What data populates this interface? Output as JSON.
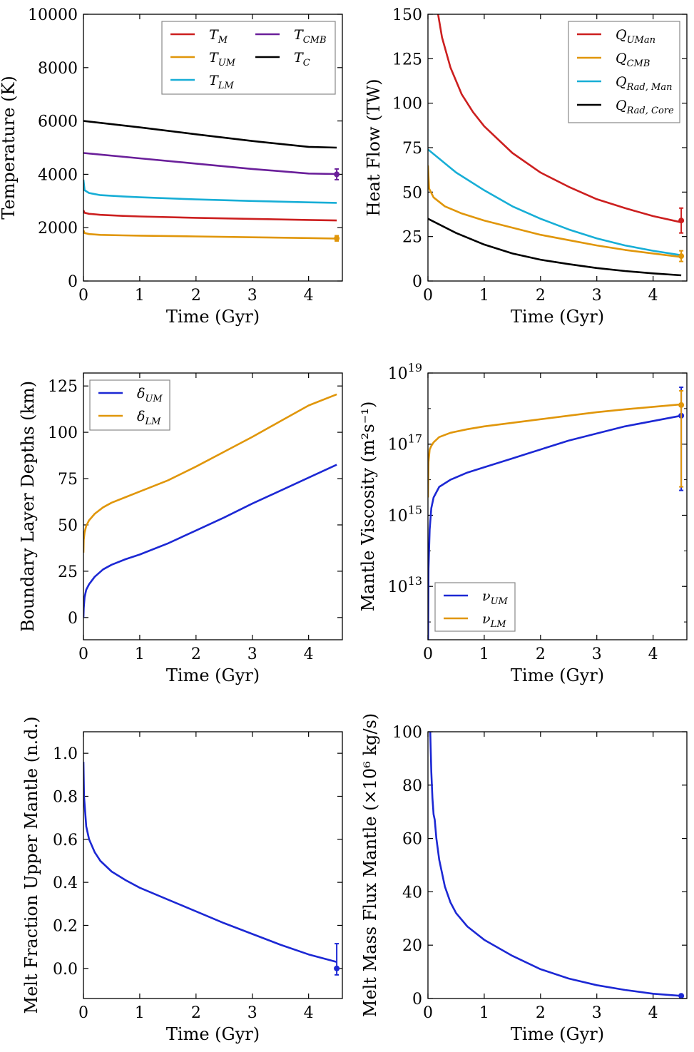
{
  "chart_data": [
    {
      "type": "line",
      "xlabel": "Time (Gyr)",
      "ylabel": "Temperature (K)",
      "xlim": [
        0,
        4.6
      ],
      "ylim": [
        0,
        10000
      ],
      "scale": "linear",
      "xticks": [
        "0",
        "1",
        "2",
        "3",
        "4"
      ],
      "yticks": [
        "0",
        "2000",
        "4000",
        "6000",
        "8000",
        "10000"
      ],
      "legend": {
        "placement": "top-right",
        "columns": 2
      },
      "series": [
        {
          "name": "T_M",
          "label_base": "T",
          "label_sub": "M",
          "color": "#cc1f1f",
          "x": [
            0,
            0.02,
            0.1,
            0.3,
            0.7,
            1,
            2,
            3,
            4,
            4.5
          ],
          "y": [
            2650,
            2560,
            2520,
            2480,
            2440,
            2420,
            2370,
            2330,
            2290,
            2270
          ]
        },
        {
          "name": "T_UM",
          "label_base": "T",
          "label_sub": "UM",
          "color": "#e0960a",
          "x": [
            0,
            0.02,
            0.1,
            0.3,
            0.7,
            1,
            2,
            3,
            4,
            4.5
          ],
          "y": [
            1900,
            1800,
            1760,
            1730,
            1710,
            1700,
            1670,
            1640,
            1610,
            1590
          ],
          "endpoint": {
            "x": 4.5,
            "y": 1600,
            "err": 100
          }
        },
        {
          "name": "T_LM",
          "label_base": "T",
          "label_sub": "LM",
          "color": "#17aed6",
          "x": [
            0,
            0.02,
            0.1,
            0.3,
            0.7,
            1,
            2,
            3,
            4,
            4.5
          ],
          "y": [
            3800,
            3400,
            3300,
            3220,
            3170,
            3140,
            3060,
            3000,
            2950,
            2930
          ]
        },
        {
          "name": "T_CMB",
          "label_base": "T",
          "label_sub": "CMB",
          "color": "#6a1f9a",
          "x": [
            0,
            1,
            2,
            3,
            4,
            4.5
          ],
          "y": [
            4800,
            4600,
            4400,
            4200,
            4030,
            4010
          ],
          "endpoint": {
            "x": 4.5,
            "y": 4000,
            "err": 200
          }
        },
        {
          "name": "T_C",
          "label_base": "T",
          "label_sub": "C",
          "color": "#000000",
          "x": [
            0,
            1,
            2,
            3,
            4,
            4.5
          ],
          "y": [
            6000,
            5760,
            5500,
            5250,
            5030,
            5000
          ]
        }
      ]
    },
    {
      "type": "line",
      "xlabel": "Time (Gyr)",
      "ylabel": "Heat Flow (TW)",
      "xlim": [
        0,
        4.6
      ],
      "ylim": [
        0,
        150
      ],
      "scale": "linear",
      "xticks": [
        "0",
        "1",
        "2",
        "3",
        "4"
      ],
      "yticks": [
        "0",
        "25",
        "50",
        "75",
        "100",
        "125",
        "150"
      ],
      "legend": {
        "placement": "top-right",
        "columns": 1
      },
      "series": [
        {
          "name": "Q_UMan",
          "label_base": "Q",
          "label_sub": "UMan",
          "color": "#cc1f1f",
          "x": [
            0.18,
            0.25,
            0.4,
            0.6,
            0.8,
            1,
            1.5,
            2,
            2.5,
            3,
            3.5,
            4,
            4.5
          ],
          "y": [
            150,
            137,
            120,
            105,
            95,
            87,
            72,
            61,
            53,
            46,
            41,
            36.5,
            33
          ],
          "endpoint": {
            "x": 4.5,
            "y": 34,
            "err": 7
          }
        },
        {
          "name": "Q_CMB",
          "label_base": "Q",
          "label_sub": "CMB",
          "color": "#e0960a",
          "x": [
            0,
            0.02,
            0.1,
            0.3,
            0.6,
            1,
            1.5,
            2,
            2.5,
            3,
            3.5,
            4,
            4.5
          ],
          "y": [
            65,
            52,
            47,
            42,
            38,
            34,
            30,
            26,
            23,
            20,
            17.5,
            15.5,
            13.5
          ],
          "endpoint": {
            "x": 4.5,
            "y": 14,
            "err": 3
          }
        },
        {
          "name": "Q_Rad,Man",
          "label_base": "Q",
          "label_sub": "Rad, Man",
          "color": "#17aed6",
          "x": [
            0,
            0.5,
            1,
            1.5,
            2,
            2.5,
            3,
            3.5,
            4,
            4.5
          ],
          "y": [
            74,
            61,
            51,
            42,
            35,
            29,
            24,
            20,
            17,
            14.5
          ]
        },
        {
          "name": "Q_Rad,Core",
          "label_base": "Q",
          "label_sub": "Rad, Core",
          "color": "#000000",
          "x": [
            0,
            0.5,
            1,
            1.5,
            2,
            2.5,
            3,
            3.5,
            4,
            4.5
          ],
          "y": [
            35,
            27,
            20.5,
            15.5,
            12,
            9.5,
            7.3,
            5.6,
            4.3,
            3.2
          ]
        }
      ]
    },
    {
      "type": "line",
      "xlabel": "Time (Gyr)",
      "ylabel": "Boundary Layer Depths (km)",
      "xlim": [
        0,
        4.6
      ],
      "ylim": [
        -12,
        132
      ],
      "scale": "linear",
      "xticks": [
        "0",
        "1",
        "2",
        "3",
        "4"
      ],
      "yticks": [
        "0",
        "25",
        "50",
        "75",
        "100",
        "125"
      ],
      "legend": {
        "placement": "top-left",
        "columns": 1
      },
      "series": [
        {
          "name": "delta_UM",
          "label_base": "δ",
          "label_sub": "UM",
          "color": "#1c28d4",
          "x": [
            0,
            0.005,
            0.02,
            0.05,
            0.1,
            0.2,
            0.35,
            0.5,
            0.75,
            1,
            1.5,
            2,
            2.5,
            3,
            3.5,
            4,
            4.5
          ],
          "y": [
            0,
            5,
            11,
            15,
            18,
            22,
            26,
            28.5,
            31.5,
            34,
            40,
            47,
            54,
            61.5,
            68.5,
            75.5,
            82.5
          ]
        },
        {
          "name": "delta_LM",
          "label_base": "δ",
          "label_sub": "LM",
          "color": "#e0960a",
          "x": [
            0,
            0.005,
            0.02,
            0.05,
            0.1,
            0.2,
            0.35,
            0.5,
            0.75,
            1,
            1.5,
            2,
            2.5,
            3,
            3.5,
            4,
            4.5
          ],
          "y": [
            35,
            42,
            46,
            49.5,
            52.5,
            56,
            59.5,
            62,
            65,
            68,
            74,
            81.5,
            89.5,
            97.5,
            106,
            114.5,
            120.5
          ]
        }
      ]
    },
    {
      "type": "line",
      "xlabel": "Time (Gyr)",
      "ylabel": "Mantle Viscosity (m²s⁻¹)",
      "xlim": [
        0,
        4.6
      ],
      "ylim_log10": [
        11.5,
        19
      ],
      "scale": "log",
      "xticks": [
        "0",
        "1",
        "2",
        "3",
        "4"
      ],
      "ytick_exponents": [
        "13",
        "15",
        "17",
        "19"
      ],
      "legend": {
        "placement": "bottom-left",
        "columns": 1
      },
      "series": [
        {
          "name": "nu_UM",
          "label_base": "ν",
          "label_sub": "UM",
          "color": "#1c28d4",
          "x": [
            0.002,
            0.01,
            0.03,
            0.06,
            0.1,
            0.2,
            0.4,
            0.7,
            1,
            1.5,
            2,
            2.5,
            3,
            3.5,
            4,
            4.5
          ],
          "log10_y": [
            11.5,
            13.5,
            14.6,
            15.2,
            15.5,
            15.8,
            16.0,
            16.2,
            16.35,
            16.6,
            16.85,
            17.1,
            17.3,
            17.5,
            17.65,
            17.8
          ],
          "endpoint": {
            "x": 4.5,
            "log10_y": 17.8,
            "log10_low": 15.7,
            "log10_high": 18.6
          }
        },
        {
          "name": "nu_LM",
          "label_base": "ν",
          "label_sub": "LM",
          "color": "#e0960a",
          "x": [
            0,
            0.01,
            0.03,
            0.06,
            0.1,
            0.2,
            0.4,
            0.7,
            1,
            1.5,
            2,
            2.5,
            3,
            3.5,
            4,
            4.5
          ],
          "log10_y": [
            15.5,
            16.5,
            16.85,
            16.95,
            17.05,
            17.2,
            17.32,
            17.42,
            17.5,
            17.6,
            17.7,
            17.8,
            17.9,
            17.98,
            18.05,
            18.12
          ],
          "endpoint": {
            "x": 4.5,
            "log10_y": 18.1,
            "log10_low": 15.8,
            "log10_high": 18.5
          }
        }
      ]
    },
    {
      "type": "line",
      "xlabel": "Time (Gyr)",
      "ylabel": "Melt Fraction Upper Mantle (n.d.)",
      "xlim": [
        0,
        4.6
      ],
      "ylim": [
        -0.14,
        1.1
      ],
      "scale": "linear",
      "xticks": [
        "0",
        "1",
        "2",
        "3",
        "4"
      ],
      "yticks": [
        "0.0",
        "0.2",
        "0.4",
        "0.6",
        "0.8",
        "1.0"
      ],
      "legend": null,
      "series": [
        {
          "name": "melt_fraction",
          "label_base": "",
          "label_sub": "",
          "color": "#1c28d4",
          "x": [
            0,
            0.01,
            0.05,
            0.1,
            0.2,
            0.3,
            0.5,
            0.75,
            1,
            1.5,
            2,
            2.5,
            3,
            3.5,
            4,
            4.5
          ],
          "y": [
            0.96,
            0.8,
            0.66,
            0.6,
            0.54,
            0.5,
            0.45,
            0.41,
            0.375,
            0.32,
            0.265,
            0.21,
            0.16,
            0.11,
            0.065,
            0.03
          ],
          "endpoint": {
            "x": 4.5,
            "y": 0.0,
            "err_low": 0.03,
            "err_high": 0.115
          }
        }
      ]
    },
    {
      "type": "line",
      "xlabel": "Time (Gyr)",
      "ylabel": "Melt Mass Flux Mantle (×10⁶ kg/s)",
      "xlim": [
        0,
        4.6
      ],
      "ylim": [
        0,
        100
      ],
      "scale": "linear",
      "xticks": [
        "0",
        "1",
        "2",
        "3",
        "4"
      ],
      "yticks": [
        "0",
        "20",
        "40",
        "60",
        "80",
        "100"
      ],
      "legend": null,
      "series": [
        {
          "name": "melt_mass_flux",
          "label_base": "",
          "label_sub": "",
          "color": "#1c28d4",
          "x": [
            0.04,
            0.06,
            0.08,
            0.1,
            0.12,
            0.15,
            0.2,
            0.3,
            0.4,
            0.5,
            0.7,
            1,
            1.5,
            2,
            2.5,
            3,
            3.5,
            4,
            4.5
          ],
          "y": [
            100,
            85,
            75,
            69,
            67,
            60,
            52,
            42,
            36,
            32,
            27,
            22,
            16,
            11,
            7.5,
            5,
            3.2,
            1.8,
            1.0
          ],
          "endpoint": {
            "x": 4.5,
            "y": 1.0,
            "err": 0.5
          }
        }
      ]
    }
  ]
}
